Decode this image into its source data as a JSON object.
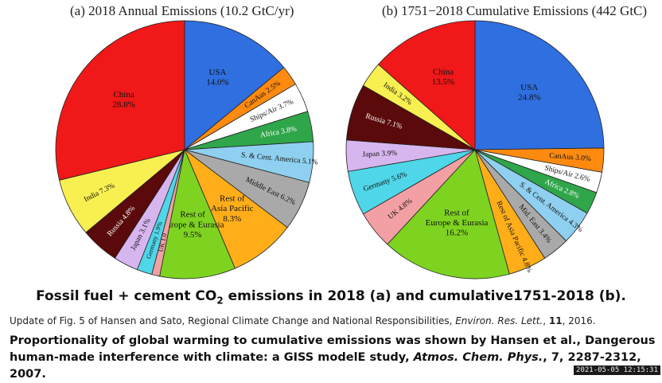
{
  "chart_data": [
    {
      "type": "pie",
      "title": "(a)  2018 Annual Emissions (10.2 GtC/yr)",
      "unit": "%",
      "slices": [
        {
          "label": "USA",
          "value": 14.0,
          "value_text": "14.0%",
          "color": "#2f6fe0"
        },
        {
          "label": "CanAus",
          "value": 2.5,
          "value_text": "2.5%",
          "color": "#ff8a10"
        },
        {
          "label": "Ships/Air",
          "value": 3.7,
          "value_text": "3.7%",
          "color": "#ffffff"
        },
        {
          "label": "Africa",
          "value": 3.8,
          "value_text": "3.8%",
          "color": "#2fa64a"
        },
        {
          "label": "S. & Cent. America",
          "value": 5.1,
          "value_text": "5.1%",
          "color": "#8fd0f0"
        },
        {
          "label": "Middle East",
          "value": 6.2,
          "value_text": "6.2%",
          "color": "#a9a9a9"
        },
        {
          "label": "Rest of Asia Pacific",
          "value": 8.3,
          "value_text": "8.3%",
          "color": "#ffae1a"
        },
        {
          "label": "Rest of Europe & Eurasia",
          "value": 9.5,
          "value_text": "9.5%",
          "color": "#7ed321"
        },
        {
          "label": "UK",
          "value": 1.0,
          "value_text": "1.0",
          "color": "#f2a0a4"
        },
        {
          "label": "Germany",
          "value": 1.9,
          "value_text": "1.9%",
          "color": "#4fd6e8"
        },
        {
          "label": "Japan",
          "value": 3.1,
          "value_text": "3.1%",
          "color": "#d7b6ef"
        },
        {
          "label": "Russia",
          "value": 4.8,
          "value_text": "4.8%",
          "color": "#5a0a0a"
        },
        {
          "label": "India",
          "value": 7.3,
          "value_text": "7.3%",
          "color": "#f8f050"
        },
        {
          "label": "China",
          "value": 28.8,
          "value_text": "28.8%",
          "color": "#f01818"
        }
      ]
    },
    {
      "type": "pie",
      "title": "(b)  1751−2018 Cumulative Emissions (442 GtC)",
      "unit": "%",
      "slices": [
        {
          "label": "USA",
          "value": 24.8,
          "value_text": "24.8%",
          "color": "#2f6fe0"
        },
        {
          "label": "CanAus",
          "value": 3.0,
          "value_text": "3.0%",
          "color": "#ff8a10"
        },
        {
          "label": "Ships/Air",
          "value": 2.6,
          "value_text": "2.6%",
          "color": "#ffffff"
        },
        {
          "label": "Africa",
          "value": 2.8,
          "value_text": "2.8%",
          "color": "#2fa64a"
        },
        {
          "label": "S. & Cent. America",
          "value": 4.3,
          "value_text": "4.3%",
          "color": "#8fd0f0"
        },
        {
          "label": "Mid. East",
          "value": 3.4,
          "value_text": "3.4%",
          "color": "#a9a9a9"
        },
        {
          "label": "Rest of Asia Pacific",
          "value": 4.8,
          "value_text": "4.8%",
          "color": "#ffae1a"
        },
        {
          "label": "Rest of Europe & Eurasia",
          "value": 16.2,
          "value_text": "16.2%",
          "color": "#7ed321"
        },
        {
          "label": "UK",
          "value": 4.8,
          "value_text": "4.8%",
          "color": "#f2a0a4"
        },
        {
          "label": "Germany",
          "value": 5.6,
          "value_text": "5.6%",
          "color": "#4fd6e8"
        },
        {
          "label": "Japan",
          "value": 3.9,
          "value_text": "3.9%",
          "color": "#d7b6ef"
        },
        {
          "label": "Russia",
          "value": 7.1,
          "value_text": "7.1%",
          "color": "#5a0a0a"
        },
        {
          "label": "India",
          "value": 3.2,
          "value_text": "3.2%",
          "color": "#f8f050"
        },
        {
          "label": "China",
          "value": 13.5,
          "value_text": "13.5%",
          "color": "#f01818"
        }
      ]
    }
  ],
  "caption": {
    "before": "Fossil fuel + cement CO",
    "sub": "2",
    "after": " emissions in 2018 (a) and cumulative1751-2018 (b)."
  },
  "source": {
    "text": "Update of Fig. 5 of Hansen and Sato, Regional Climate Change and National Responsibilities, ",
    "journal": "Environ. Res. Lett.",
    "volume": "11",
    "year": ", 2016."
  },
  "note": {
    "line1": "Proportionality of global warming to cumulative emissions was shown by Hansen et al., Dangerous",
    "line2_before": "human-made interference with climate: a GISS modelE study, ",
    "line2_journal": "Atmos. Chem. Phys.",
    "line2_after": ", 7, 2287-2312, 2007."
  },
  "timestamp": "2021-05-05  12:15:31"
}
